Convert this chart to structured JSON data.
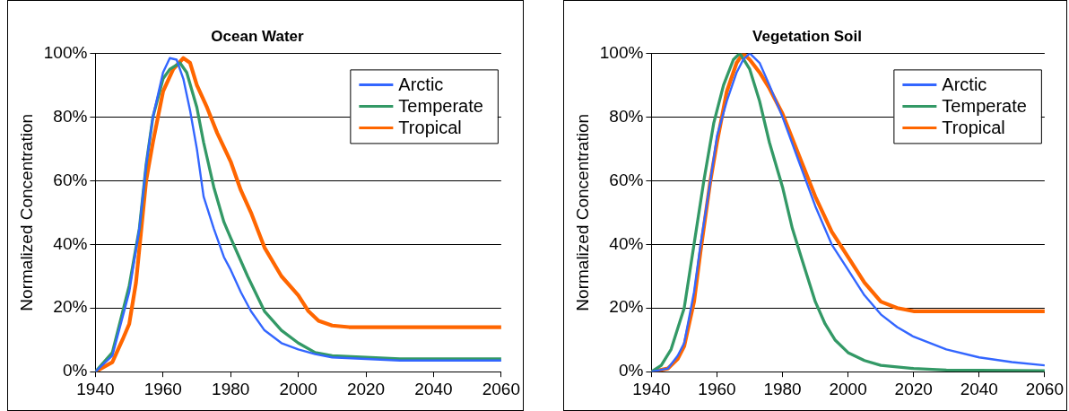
{
  "chart_data": [
    {
      "type": "line",
      "title": "Ocean Water",
      "ylabel": "Normalized Concentration",
      "xlim": [
        1940,
        2060
      ],
      "xticks": [
        1940,
        1960,
        1980,
        2000,
        2020,
        2040,
        2060
      ],
      "ylim": [
        0,
        100
      ],
      "yticks": [
        {
          "value": 0,
          "label": "0%"
        },
        {
          "value": 20,
          "label": "20%"
        },
        {
          "value": 40,
          "label": "40%"
        },
        {
          "value": 60,
          "label": "60%"
        },
        {
          "value": 80,
          "label": "80%"
        },
        {
          "value": 100,
          "label": "100%"
        }
      ],
      "grid": "y",
      "legend": "top right",
      "marker": "none",
      "line_style": "solid",
      "series": [
        {
          "name": "Arctic",
          "color": "#3366ff",
          "x": [
            1940,
            1945,
            1950,
            1953,
            1955,
            1957,
            1960,
            1962,
            1964,
            1966,
            1968,
            1970,
            1972,
            1975,
            1978,
            1980,
            1983,
            1986,
            1990,
            1995,
            2000,
            2005,
            2010,
            2020,
            2030,
            2060
          ],
          "values": [
            0,
            5,
            25,
            45,
            65,
            80,
            94,
            98.5,
            98,
            92,
            82,
            70,
            55,
            45,
            36,
            32,
            25,
            19,
            13,
            9,
            7,
            5.5,
            4.5,
            4,
            3.5,
            3.5
          ]
        },
        {
          "name": "Temperate",
          "color": "#339966",
          "x": [
            1940,
            1945,
            1950,
            1953,
            1955,
            1957,
            1960,
            1962,
            1965,
            1967,
            1970,
            1972,
            1975,
            1978,
            1980,
            1985,
            1990,
            1995,
            2000,
            2005,
            2010,
            2020,
            2030,
            2060
          ],
          "values": [
            0,
            6,
            27,
            45,
            65,
            80,
            92,
            95,
            97,
            94,
            83,
            72,
            58,
            47,
            42,
            30,
            19,
            13,
            9,
            6,
            5,
            4.5,
            4,
            4
          ]
        },
        {
          "name": "Tropical",
          "color": "#ff6600",
          "x": [
            1940,
            1945,
            1948,
            1950,
            1952,
            1955,
            1957,
            1960,
            1963,
            1966,
            1968,
            1970,
            1973,
            1976,
            1980,
            1983,
            1986,
            1990,
            1995,
            2000,
            2003,
            2006,
            2010,
            2015,
            2060
          ],
          "values": [
            0,
            3,
            10,
            15,
            28,
            60,
            72,
            88,
            95,
            98.5,
            97,
            90,
            83,
            75,
            66,
            57,
            50,
            39,
            30,
            24,
            19,
            16,
            14.5,
            14,
            14
          ]
        }
      ]
    },
    {
      "type": "line",
      "title": "Vegetation Soil",
      "ylabel": "Normalized Concentration",
      "xlim": [
        1940,
        2060
      ],
      "xticks": [
        1940,
        1960,
        1980,
        2000,
        2020,
        2040,
        2060
      ],
      "ylim": [
        0,
        100
      ],
      "yticks": [
        {
          "value": 0,
          "label": "0%"
        },
        {
          "value": 20,
          "label": "20%"
        },
        {
          "value": 40,
          "label": "40%"
        },
        {
          "value": 60,
          "label": "60%"
        },
        {
          "value": 80,
          "label": "80%"
        },
        {
          "value": 100,
          "label": "100%"
        }
      ],
      "grid": "y",
      "legend": "top right",
      "marker": "none",
      "line_style": "solid",
      "series": [
        {
          "name": "Arctic",
          "color": "#3366ff",
          "x": [
            1940,
            1945,
            1948,
            1950,
            1953,
            1955,
            1958,
            1960,
            1963,
            1966,
            1968,
            1970,
            1973,
            1976,
            1980,
            1985,
            1990,
            1995,
            2000,
            2005,
            2010,
            2015,
            2020,
            2030,
            2040,
            2050,
            2060
          ],
          "values": [
            0,
            1,
            5,
            9,
            25,
            40,
            60,
            74,
            85,
            94,
            98,
            100,
            97,
            90,
            80,
            66,
            52,
            40,
            32,
            24,
            18,
            14,
            11,
            7,
            4.5,
            3,
            2
          ]
        },
        {
          "name": "Temperate",
          "color": "#339966",
          "x": [
            1940,
            1943,
            1946,
            1950,
            1953,
            1956,
            1959,
            1962,
            1965,
            1967,
            1970,
            1973,
            1976,
            1980,
            1983,
            1986,
            1990,
            1993,
            1996,
            2000,
            2005,
            2010,
            2020,
            2030,
            2060
          ],
          "values": [
            0,
            2,
            7,
            20,
            40,
            60,
            78,
            90,
            98,
            100,
            95,
            85,
            72,
            58,
            45,
            35,
            22,
            15,
            10,
            6,
            3.5,
            2,
            1,
            0.5,
            0.3
          ]
        },
        {
          "name": "Tropical",
          "color": "#ff6600",
          "x": [
            1940,
            1945,
            1948,
            1950,
            1953,
            1955,
            1958,
            1960,
            1963,
            1966,
            1968,
            1970,
            1973,
            1976,
            1980,
            1985,
            1990,
            1995,
            2000,
            2005,
            2010,
            2015,
            2020,
            2060
          ],
          "values": [
            0,
            1,
            4,
            8,
            22,
            38,
            60,
            72,
            88,
            97,
            100,
            98,
            94,
            89,
            81,
            68,
            55,
            44,
            36,
            28,
            22,
            20,
            19,
            19
          ]
        }
      ]
    }
  ]
}
